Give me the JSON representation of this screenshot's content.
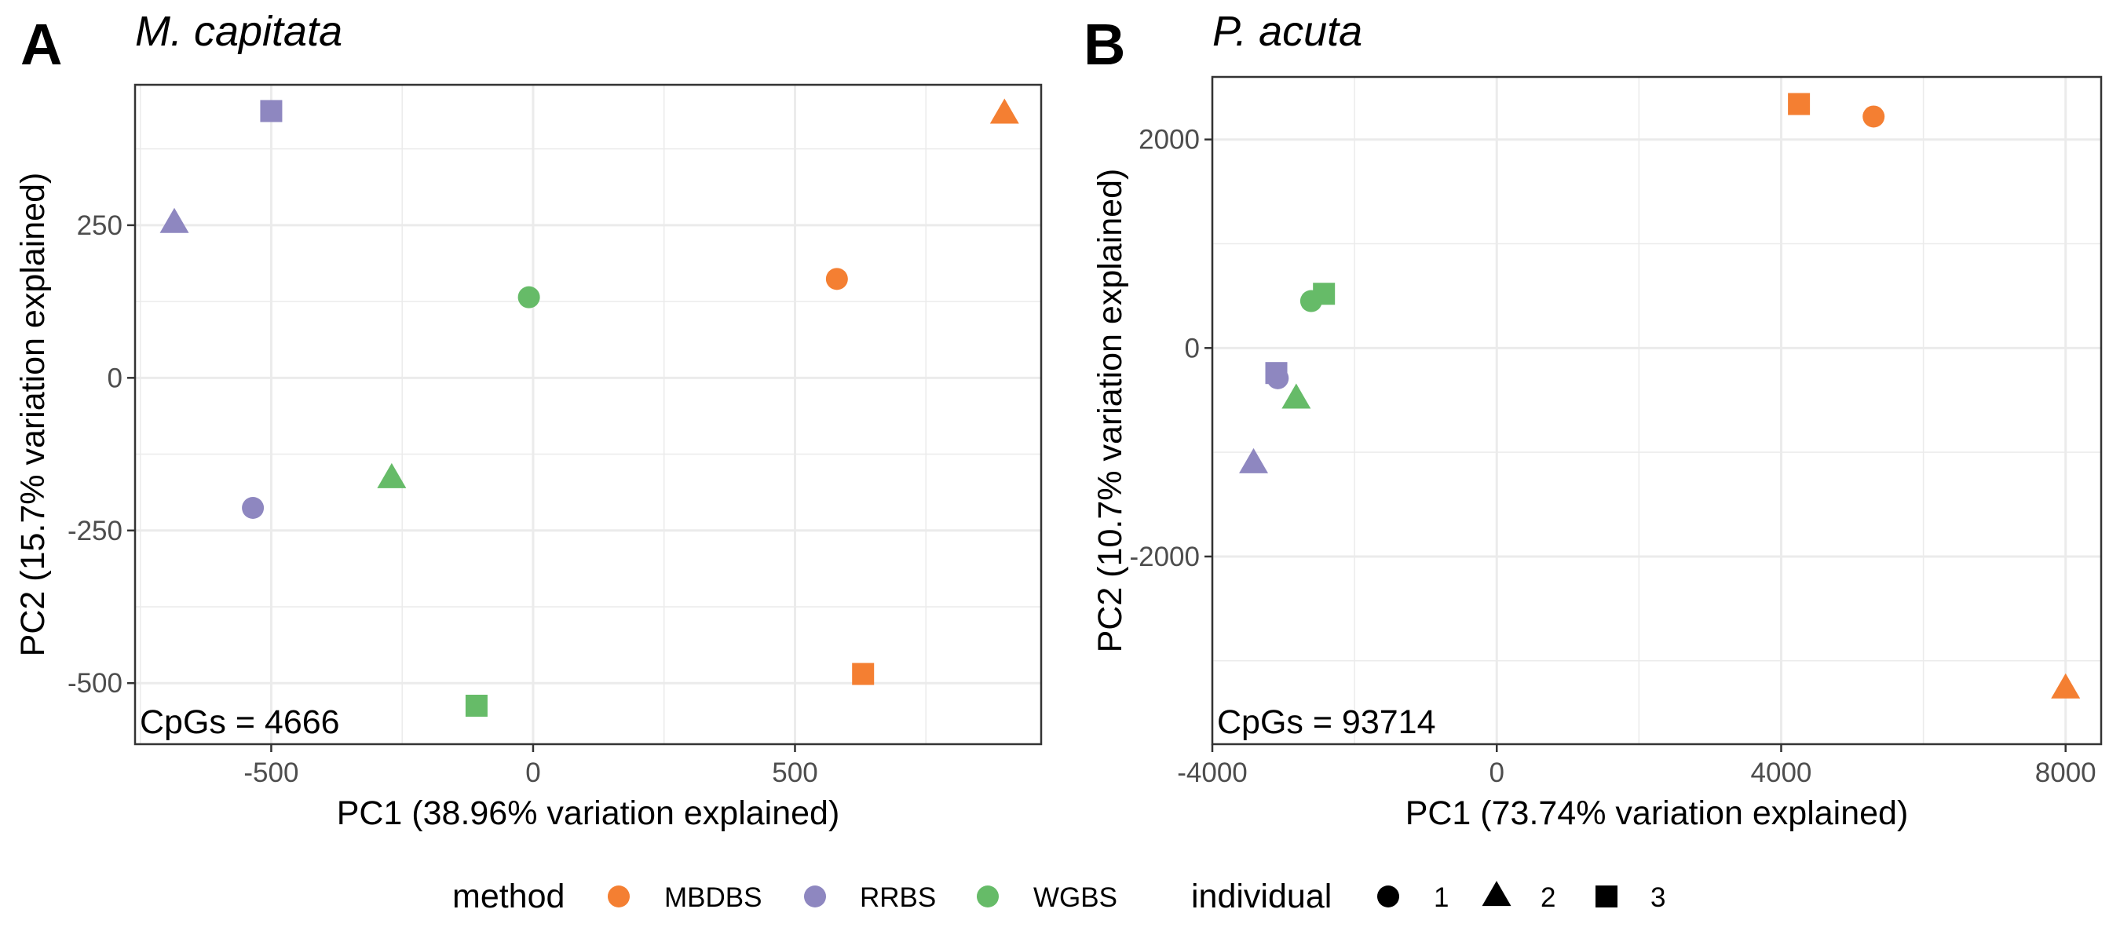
{
  "chart_data": [
    {
      "type": "scatter",
      "panel_label": "A",
      "title": "M. capitata",
      "xlabel": "PC1 (38.96% variation explained)",
      "ylabel": "PC2 (15.7% variation explained)",
      "xlim": [
        -760,
        970
      ],
      "ylim": [
        -600,
        480
      ],
      "x_ticks": [
        -500,
        0,
        500
      ],
      "x_tick_labels": [
        "-500",
        "0",
        "500"
      ],
      "y_ticks": [
        -500,
        -250,
        0,
        250
      ],
      "y_tick_labels": [
        "-500",
        "-250",
        "0",
        "250"
      ],
      "grid": true,
      "annotation": "CpGs = 4666",
      "points": [
        {
          "method": "MBDBS",
          "individual": "1",
          "x": 580,
          "y": 162
        },
        {
          "method": "MBDBS",
          "individual": "2",
          "x": 900,
          "y": 432
        },
        {
          "method": "MBDBS",
          "individual": "3",
          "x": 630,
          "y": -485
        },
        {
          "method": "RRBS",
          "individual": "1",
          "x": -535,
          "y": -213
        },
        {
          "method": "RRBS",
          "individual": "2",
          "x": -685,
          "y": 253
        },
        {
          "method": "RRBS",
          "individual": "3",
          "x": -500,
          "y": 437
        },
        {
          "method": "WGBS",
          "individual": "1",
          "x": -8,
          "y": 132
        },
        {
          "method": "WGBS",
          "individual": "2",
          "x": -270,
          "y": -165
        },
        {
          "method": "WGBS",
          "individual": "3",
          "x": -108,
          "y": -537
        }
      ]
    },
    {
      "type": "scatter",
      "panel_label": "B",
      "title": "P. acuta",
      "xlabel": "PC1 (73.74% variation explained)",
      "ylabel": "PC2 (10.7% variation explained)",
      "xlim": [
        -4000,
        8500
      ],
      "ylim": [
        -3800,
        2600
      ],
      "x_ticks": [
        -4000,
        0,
        4000,
        8000
      ],
      "x_tick_labels": [
        "-4000",
        "0",
        "4000",
        "8000"
      ],
      "y_ticks": [
        -2000,
        0,
        2000
      ],
      "y_tick_labels": [
        "-2000",
        "0",
        "2000"
      ],
      "grid": true,
      "annotation": "CpGs = 93714",
      "points": [
        {
          "method": "MBDBS",
          "individual": "1",
          "x": 5300,
          "y": 2220
        },
        {
          "method": "MBDBS",
          "individual": "2",
          "x": 8000,
          "y": -3270
        },
        {
          "method": "MBDBS",
          "individual": "3",
          "x": 4250,
          "y": 2340
        },
        {
          "method": "RRBS",
          "individual": "1",
          "x": -3080,
          "y": -290
        },
        {
          "method": "RRBS",
          "individual": "2",
          "x": -3420,
          "y": -1110
        },
        {
          "method": "RRBS",
          "individual": "3",
          "x": -3100,
          "y": -240
        },
        {
          "method": "WGBS",
          "individual": "1",
          "x": -2610,
          "y": 450
        },
        {
          "method": "WGBS",
          "individual": "2",
          "x": -2820,
          "y": -490
        },
        {
          "method": "WGBS",
          "individual": "3",
          "x": -2430,
          "y": 520
        }
      ]
    }
  ],
  "legend": {
    "placement": "bottom",
    "method_title": "method",
    "methods": [
      {
        "label": "MBDBS",
        "color": "#f47f32"
      },
      {
        "label": "RRBS",
        "color": "#8e87c0"
      },
      {
        "label": "WGBS",
        "color": "#66bb68"
      }
    ],
    "individual_title": "individual",
    "individuals": [
      {
        "label": "1",
        "shape": "circle"
      },
      {
        "label": "2",
        "shape": "triangle"
      },
      {
        "label": "3",
        "shape": "square"
      }
    ]
  }
}
